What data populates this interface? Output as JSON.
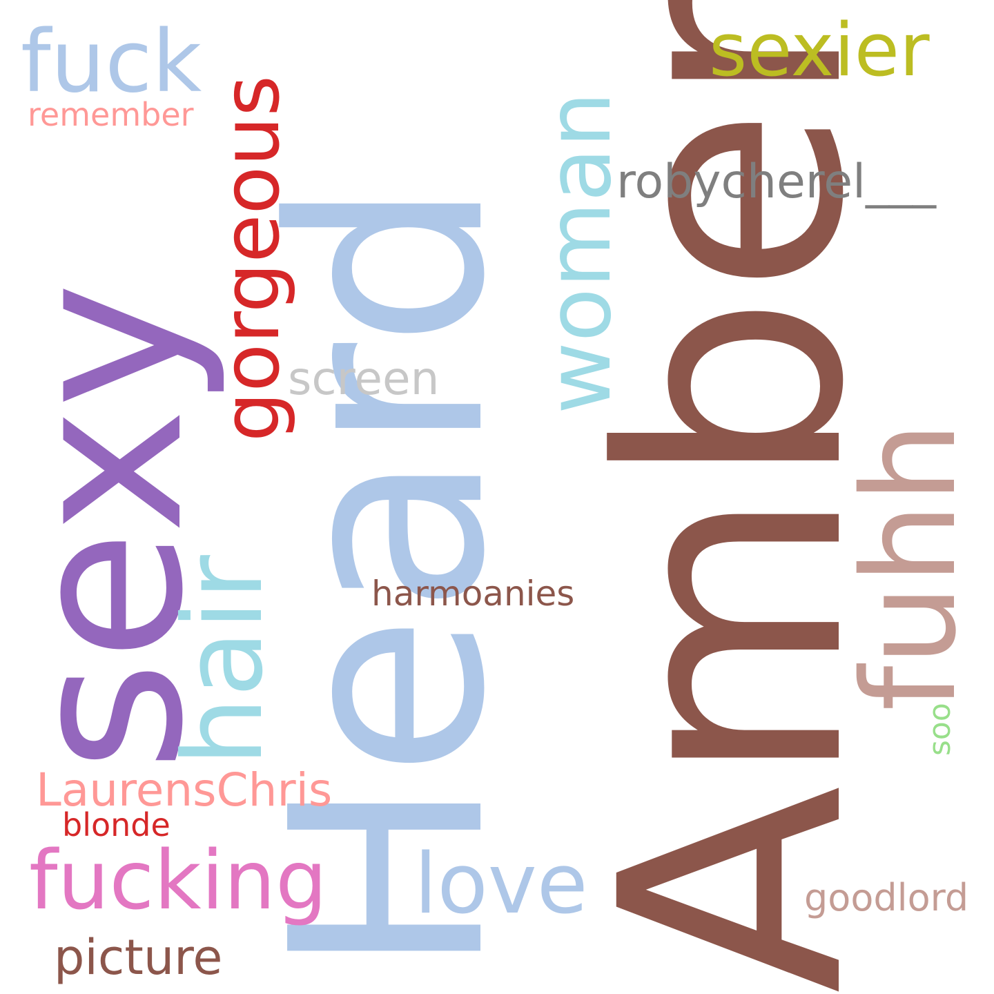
{
  "words": [
    {
      "id": "heard",
      "text": "Heard",
      "color": "#aec7e8",
      "orientation": "vertical"
    },
    {
      "id": "amber",
      "text": "Amber",
      "color": "#8c564b",
      "orientation": "vertical"
    },
    {
      "id": "sexy",
      "text": "sexy",
      "color": "#9467bd",
      "orientation": "vertical"
    },
    {
      "id": "woman",
      "text": "woman",
      "color": "#9edae5",
      "orientation": "vertical"
    },
    {
      "id": "gorgeous",
      "text": "gorgeous",
      "color": "#d62728",
      "orientation": "vertical"
    },
    {
      "id": "hair",
      "text": "hair",
      "color": "#9edae5",
      "orientation": "vertical"
    },
    {
      "id": "fuhh",
      "text": "fuhh",
      "color": "#c49c94",
      "orientation": "vertical"
    },
    {
      "id": "soo",
      "text": "soo",
      "color": "#98df8a",
      "orientation": "vertical"
    },
    {
      "id": "fuck",
      "text": "fuck",
      "color": "#aec7e8",
      "orientation": "horizontal"
    },
    {
      "id": "remember",
      "text": "remember",
      "color": "#ff9896",
      "orientation": "horizontal"
    },
    {
      "id": "sexier",
      "text": "sexier",
      "color": "#bcbd22",
      "orientation": "horizontal"
    },
    {
      "id": "robycherel",
      "text": "robycherel___",
      "color": "#7f7f7f",
      "orientation": "horizontal"
    },
    {
      "id": "screen",
      "text": "screen",
      "color": "#c7c7c7",
      "orientation": "horizontal"
    },
    {
      "id": "harmoanies",
      "text": "harmoanies",
      "color": "#8c564b",
      "orientation": "horizontal"
    },
    {
      "id": "laurenschris",
      "text": "LaurensChris",
      "color": "#ff9896",
      "orientation": "horizontal"
    },
    {
      "id": "blonde",
      "text": "blonde",
      "color": "#d62728",
      "orientation": "horizontal"
    },
    {
      "id": "fucking",
      "text": "fucking",
      "color": "#e377c2",
      "orientation": "horizontal"
    },
    {
      "id": "love",
      "text": "love",
      "color": "#aec7e8",
      "orientation": "horizontal"
    },
    {
      "id": "goodlord",
      "text": "goodlord",
      "color": "#c49c94",
      "orientation": "horizontal"
    },
    {
      "id": "picture",
      "text": "picture",
      "color": "#8c564b",
      "orientation": "horizontal"
    }
  ]
}
